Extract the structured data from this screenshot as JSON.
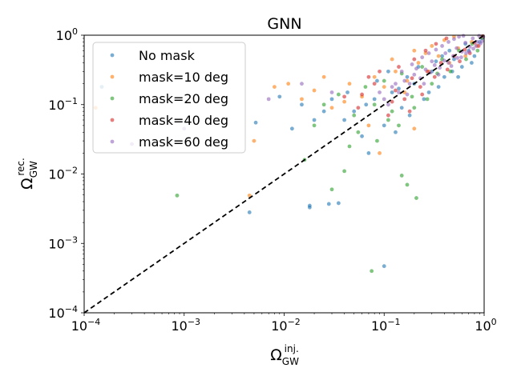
{
  "chart_data": {
    "type": "scatter",
    "title": "GNN",
    "xlabel": {
      "base": "Ω",
      "sub": "GW",
      "sup": "inj."
    },
    "ylabel": {
      "base": "Ω",
      "sub": "GW",
      "sup": "rec."
    },
    "xscale": "log",
    "yscale": "log",
    "xlim": [
      0.0001,
      1
    ],
    "ylim": [
      0.0001,
      1
    ],
    "x_ticks": [
      {
        "value": 0.0001,
        "base": "10",
        "exp": "−4"
      },
      {
        "value": 0.001,
        "base": "10",
        "exp": "−3"
      },
      {
        "value": 0.01,
        "base": "10",
        "exp": "−2"
      },
      {
        "value": 0.1,
        "base": "10",
        "exp": "−1"
      },
      {
        "value": 1,
        "base": "10",
        "exp": "0"
      }
    ],
    "y_ticks": [
      {
        "value": 0.0001,
        "base": "10",
        "exp": "−4"
      },
      {
        "value": 0.001,
        "base": "10",
        "exp": "−3"
      },
      {
        "value": 0.01,
        "base": "10",
        "exp": "−2"
      },
      {
        "value": 0.1,
        "base": "10",
        "exp": "−1"
      },
      {
        "value": 1,
        "base": "10",
        "exp": "0"
      }
    ],
    "grid": false,
    "legend_placement": "top-left",
    "reference_line": {
      "style": "dashed",
      "color": "#000000",
      "from": [
        0.0001,
        0.0001
      ],
      "to": [
        1,
        1
      ]
    },
    "series": [
      {
        "name": "No mask",
        "color": "#1f77b4",
        "points": [
          [
            0.00015,
            0.18
          ],
          [
            0.0045,
            0.0028
          ],
          [
            0.018,
            0.0035
          ],
          [
            0.018,
            0.0033
          ],
          [
            0.028,
            0.0037
          ],
          [
            0.035,
            0.0038
          ],
          [
            0.1,
            0.00047
          ],
          [
            0.0052,
            0.055
          ],
          [
            0.012,
            0.045
          ],
          [
            0.025,
            0.08
          ],
          [
            0.04,
            0.06
          ],
          [
            0.06,
            0.035
          ],
          [
            0.08,
            0.12
          ],
          [
            0.1,
            0.05
          ],
          [
            0.12,
            0.15
          ],
          [
            0.15,
            0.09
          ],
          [
            0.2,
            0.2
          ],
          [
            0.25,
            0.12
          ],
          [
            0.3,
            0.3
          ],
          [
            0.4,
            0.25
          ],
          [
            0.5,
            0.45
          ],
          [
            0.6,
            0.35
          ],
          [
            0.7,
            0.6
          ],
          [
            0.8,
            0.5
          ],
          [
            0.9,
            0.8
          ],
          [
            0.07,
            0.02
          ],
          [
            0.05,
            0.08
          ],
          [
            0.03,
            0.12
          ],
          [
            0.02,
            0.06
          ],
          [
            0.015,
            0.1
          ],
          [
            0.009,
            0.13
          ],
          [
            0.11,
            0.3
          ],
          [
            0.18,
            0.07
          ],
          [
            0.22,
            0.35
          ],
          [
            0.35,
            0.18
          ],
          [
            0.45,
            0.6
          ],
          [
            0.55,
            0.25
          ],
          [
            0.65,
            0.75
          ],
          [
            0.75,
            0.4
          ],
          [
            0.95,
            0.9
          ],
          [
            0.13,
            0.04
          ],
          [
            0.17,
            0.25
          ],
          [
            0.28,
            0.15
          ],
          [
            0.38,
            0.5
          ],
          [
            0.48,
            0.3
          ],
          [
            0.043,
            0.15
          ],
          [
            0.066,
            0.1
          ],
          [
            0.085,
            0.22
          ],
          [
            0.14,
            0.17
          ],
          [
            0.33,
            0.42
          ]
        ]
      },
      {
        "name": "mask=10 deg",
        "color": "#ff7f0e",
        "points": [
          [
            0.00013,
            0.09
          ],
          [
            0.0045,
            0.0049
          ],
          [
            0.005,
            0.03
          ],
          [
            0.008,
            0.18
          ],
          [
            0.015,
            0.12
          ],
          [
            0.02,
            0.16
          ],
          [
            0.03,
            0.09
          ],
          [
            0.045,
            0.2
          ],
          [
            0.06,
            0.13
          ],
          [
            0.08,
            0.25
          ],
          [
            0.1,
            0.18
          ],
          [
            0.13,
            0.3
          ],
          [
            0.17,
            0.22
          ],
          [
            0.22,
            0.4
          ],
          [
            0.28,
            0.3
          ],
          [
            0.35,
            0.5
          ],
          [
            0.45,
            0.4
          ],
          [
            0.55,
            0.65
          ],
          [
            0.65,
            0.5
          ],
          [
            0.75,
            0.8
          ],
          [
            0.85,
            0.7
          ],
          [
            0.95,
            0.95
          ],
          [
            0.12,
            0.45
          ],
          [
            0.2,
            0.6
          ],
          [
            0.3,
            0.7
          ],
          [
            0.4,
            0.85
          ],
          [
            0.5,
            0.95
          ],
          [
            0.07,
            0.05
          ],
          [
            0.09,
            0.02
          ],
          [
            0.2,
            0.045
          ],
          [
            0.011,
            0.2
          ],
          [
            0.025,
            0.25
          ],
          [
            0.04,
            0.11
          ],
          [
            0.16,
            0.15
          ],
          [
            0.26,
            0.55
          ]
        ]
      },
      {
        "name": "mask=20 deg",
        "color": "#2ca02c",
        "points": [
          [
            0.00085,
            0.0049
          ],
          [
            0.016,
            0.016
          ],
          [
            0.03,
            0.006
          ],
          [
            0.04,
            0.011
          ],
          [
            0.075,
            0.0004
          ],
          [
            0.21,
            0.0045
          ],
          [
            0.15,
            0.0095
          ],
          [
            0.17,
            0.007
          ],
          [
            0.025,
            0.1
          ],
          [
            0.035,
            0.14
          ],
          [
            0.05,
            0.07
          ],
          [
            0.065,
            0.18
          ],
          [
            0.08,
            0.1
          ],
          [
            0.1,
            0.22
          ],
          [
            0.12,
            0.08
          ],
          [
            0.15,
            0.28
          ],
          [
            0.19,
            0.13
          ],
          [
            0.24,
            0.35
          ],
          [
            0.3,
            0.2
          ],
          [
            0.38,
            0.45
          ],
          [
            0.46,
            0.3
          ],
          [
            0.56,
            0.6
          ],
          [
            0.66,
            0.45
          ],
          [
            0.76,
            0.75
          ],
          [
            0.86,
            0.6
          ],
          [
            0.96,
            0.92
          ],
          [
            0.055,
            0.04
          ],
          [
            0.085,
            0.03
          ],
          [
            0.11,
            0.06
          ],
          [
            0.14,
            0.05
          ],
          [
            0.02,
            0.05
          ],
          [
            0.045,
            0.025
          ],
          [
            0.2,
            0.09
          ],
          [
            0.27,
            0.12
          ],
          [
            0.34,
            0.28
          ]
        ]
      },
      {
        "name": "mask=40 deg",
        "color": "#d62728",
        "points": [
          [
            0.11,
            0.07
          ],
          [
            0.13,
            0.16
          ],
          [
            0.16,
            0.12
          ],
          [
            0.19,
            0.24
          ],
          [
            0.23,
            0.18
          ],
          [
            0.27,
            0.3
          ],
          [
            0.32,
            0.25
          ],
          [
            0.37,
            0.4
          ],
          [
            0.43,
            0.32
          ],
          [
            0.5,
            0.5
          ],
          [
            0.57,
            0.42
          ],
          [
            0.64,
            0.62
          ],
          [
            0.72,
            0.55
          ],
          [
            0.8,
            0.78
          ],
          [
            0.88,
            0.7
          ],
          [
            0.97,
            0.97
          ],
          [
            0.06,
            0.14
          ],
          [
            0.08,
            0.2
          ],
          [
            0.09,
            0.3
          ],
          [
            0.14,
            0.35
          ],
          [
            0.2,
            0.45
          ],
          [
            0.26,
            0.6
          ],
          [
            0.33,
            0.75
          ],
          [
            0.42,
            0.9
          ],
          [
            0.055,
            0.09
          ],
          [
            0.04,
            0.13
          ],
          [
            0.07,
            0.25
          ],
          [
            0.12,
            0.11
          ],
          [
            0.18,
            0.08
          ],
          [
            0.24,
            0.14
          ]
        ]
      },
      {
        "name": "mask=60 deg",
        "color": "#9467bd",
        "points": [
          [
            0.1,
            0.12
          ],
          [
            0.12,
            0.18
          ],
          [
            0.14,
            0.15
          ],
          [
            0.16,
            0.22
          ],
          [
            0.18,
            0.2
          ],
          [
            0.2,
            0.27
          ],
          [
            0.23,
            0.24
          ],
          [
            0.26,
            0.32
          ],
          [
            0.29,
            0.29
          ],
          [
            0.32,
            0.37
          ],
          [
            0.36,
            0.34
          ],
          [
            0.4,
            0.43
          ],
          [
            0.44,
            0.4
          ],
          [
            0.49,
            0.5
          ],
          [
            0.54,
            0.47
          ],
          [
            0.6,
            0.58
          ],
          [
            0.66,
            0.55
          ],
          [
            0.72,
            0.68
          ],
          [
            0.78,
            0.64
          ],
          [
            0.85,
            0.8
          ],
          [
            0.92,
            0.76
          ],
          [
            0.98,
            0.95
          ],
          [
            0.09,
            0.15
          ],
          [
            0.11,
            0.1
          ],
          [
            0.13,
            0.2
          ],
          [
            0.17,
            0.14
          ],
          [
            0.21,
            0.33
          ],
          [
            0.25,
            0.2
          ],
          [
            0.3,
            0.42
          ],
          [
            0.35,
            0.27
          ],
          [
            0.41,
            0.55
          ],
          [
            0.47,
            0.36
          ],
          [
            0.53,
            0.65
          ],
          [
            0.59,
            0.48
          ],
          [
            0.65,
            0.78
          ],
          [
            0.71,
            0.58
          ],
          [
            0.77,
            0.9
          ],
          [
            0.83,
            0.7
          ],
          [
            0.89,
            0.98
          ],
          [
            0.95,
            0.82
          ],
          [
            0.15,
            0.3
          ],
          [
            0.19,
            0.38
          ],
          [
            0.24,
            0.48
          ],
          [
            0.28,
            0.55
          ],
          [
            0.33,
            0.62
          ],
          [
            0.38,
            0.7
          ],
          [
            0.44,
            0.8
          ],
          [
            0.5,
            0.88
          ],
          [
            0.56,
            0.95
          ],
          [
            0.62,
            0.98
          ],
          [
            0.0003,
            0.027
          ],
          [
            0.001,
            0.045
          ],
          [
            0.007,
            0.12
          ],
          [
            0.015,
            0.2
          ],
          [
            0.03,
            0.15
          ]
        ]
      }
    ]
  }
}
